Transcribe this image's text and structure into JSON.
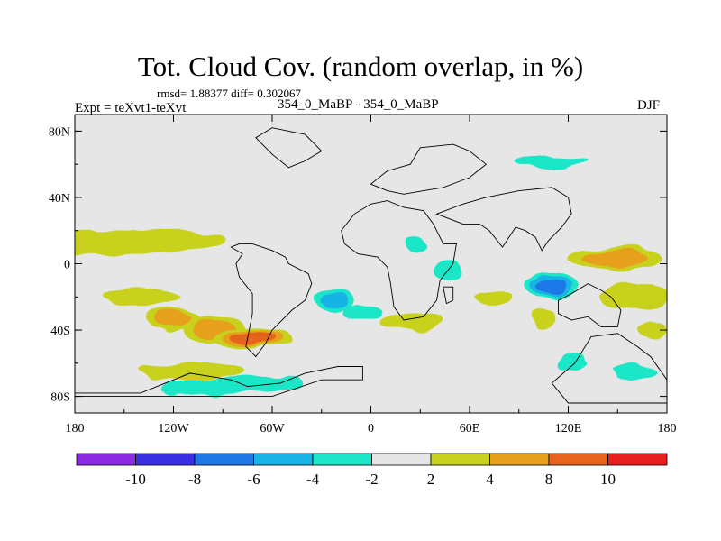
{
  "chart_data": {
    "type": "heatmap",
    "title": "Tot. Cloud Cov. (random overlap, in %)",
    "stats": "rmsd= 1.88377 diff= 0.302067",
    "left_label": "Expt = teXvt1-teXvt",
    "center_label": "354_0_MaBP - 354_0_MaBP",
    "right_label": "DJF",
    "x_ticks": [
      {
        "lon": -180,
        "label": "180"
      },
      {
        "lon": -120,
        "label": "120W"
      },
      {
        "lon": -60,
        "label": "60W"
      },
      {
        "lon": 0,
        "label": "0"
      },
      {
        "lon": 60,
        "label": "60E"
      },
      {
        "lon": 120,
        "label": "120E"
      },
      {
        "lon": 180,
        "label": "180"
      }
    ],
    "y_ticks": [
      {
        "lat": 80,
        "label": "80N"
      },
      {
        "lat": 40,
        "label": "40N"
      },
      {
        "lat": 0,
        "label": "0"
      },
      {
        "lat": -40,
        "label": "40S"
      },
      {
        "lat": -80,
        "label": "80S"
      }
    ],
    "xlim": [
      -180,
      180
    ],
    "ylim": [
      -90,
      90
    ],
    "colorbar": {
      "levels": [
        "-10",
        "-8",
        "-6",
        "-4",
        "-2",
        "2",
        "4",
        "8",
        "10"
      ],
      "colors": [
        "#8a2be2",
        "#3a2fe0",
        "#1e78e6",
        "#19b4e6",
        "#1ee6c8",
        "#e6e6e6",
        "#c8d21e",
        "#e6a01e",
        "#e6641e",
        "#e61e1e"
      ]
    },
    "field": [
      {
        "lon": -165,
        "lat": 12,
        "value": 2.5
      },
      {
        "lon": -120,
        "lat": 14,
        "value": 2.2
      },
      {
        "lon": -140,
        "lat": -20,
        "value": 3
      },
      {
        "lon": -120,
        "lat": -33,
        "value": 6
      },
      {
        "lon": -95,
        "lat": -40,
        "value": 5
      },
      {
        "lon": -72,
        "lat": -45,
        "value": 9
      },
      {
        "lon": -110,
        "lat": -65,
        "value": 2.5
      },
      {
        "lon": -100,
        "lat": -75,
        "value": -3.5
      },
      {
        "lon": -65,
        "lat": -72,
        "value": -4
      },
      {
        "lon": -22,
        "lat": -22,
        "value": -5
      },
      {
        "lon": -5,
        "lat": -30,
        "value": -3
      },
      {
        "lon": 25,
        "lat": -35,
        "value": 4
      },
      {
        "lon": 28,
        "lat": 12,
        "value": -3
      },
      {
        "lon": 47,
        "lat": -4,
        "value": -3
      },
      {
        "lon": 75,
        "lat": -20,
        "value": 3
      },
      {
        "lon": 109,
        "lat": -13,
        "value": -7
      },
      {
        "lon": 105,
        "lat": -33,
        "value": 4
      },
      {
        "lon": 148,
        "lat": 3,
        "value": 5
      },
      {
        "lon": 160,
        "lat": -20,
        "value": 3
      },
      {
        "lon": 122,
        "lat": -59,
        "value": -3
      },
      {
        "lon": 160,
        "lat": -65,
        "value": -3
      },
      {
        "lon": 110,
        "lat": 62,
        "value": -3
      },
      {
        "lon": 170,
        "lat": -40,
        "value": 3
      }
    ]
  }
}
